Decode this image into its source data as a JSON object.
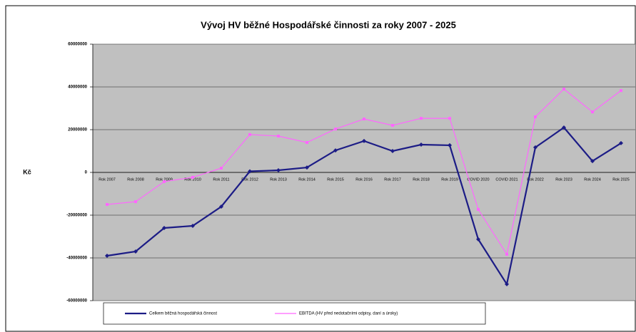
{
  "chart_data": {
    "type": "line",
    "title": "Vývoj HV běžné Hospodářské činnosti za roky 2007 - 2025",
    "y_label": "Kč",
    "categories": [
      "Rok 2007",
      "Rok 2008",
      "Rok 2009",
      "Rok 2010",
      "Rok 2011",
      "Rok 2012",
      "Rok 2013",
      "Rok 2014",
      "Rok 2015",
      "Rok 2016",
      "Rok 2017",
      "Rok 2018",
      "Rok 2019",
      "COVID 2020",
      "COVID 2021",
      "Rok 2022",
      "Rok 2023",
      "Rok 2024",
      "Rok 2025"
    ],
    "series": [
      {
        "name": "Celkem běžná hospodářská činnost",
        "color": "#1c1c86",
        "values": [
          -39000000,
          -37000000,
          -26000000,
          -25000000,
          -16000000,
          500000,
          1000000,
          2300000,
          10300000,
          14700000,
          10000000,
          13000000,
          12700000,
          -31300000,
          -52300000,
          11700000,
          21000000,
          5300000,
          13700000
        ]
      },
      {
        "name": "EBITDA (HV před nedotačními odpisy, daní a úroky)",
        "color": "#ff66ff",
        "values": [
          -15000000,
          -13700000,
          -4300000,
          -2300000,
          2000000,
          17700000,
          17000000,
          14000000,
          20300000,
          25000000,
          22000000,
          25300000,
          25300000,
          -17300000,
          -38300000,
          26000000,
          39000000,
          28300000,
          38300000
        ]
      }
    ],
    "ylim": [
      -60000000,
      60000000
    ],
    "yticks": [
      -60000000,
      -40000000,
      -20000000,
      0,
      20000000,
      40000000,
      60000000
    ],
    "grid": true
  }
}
